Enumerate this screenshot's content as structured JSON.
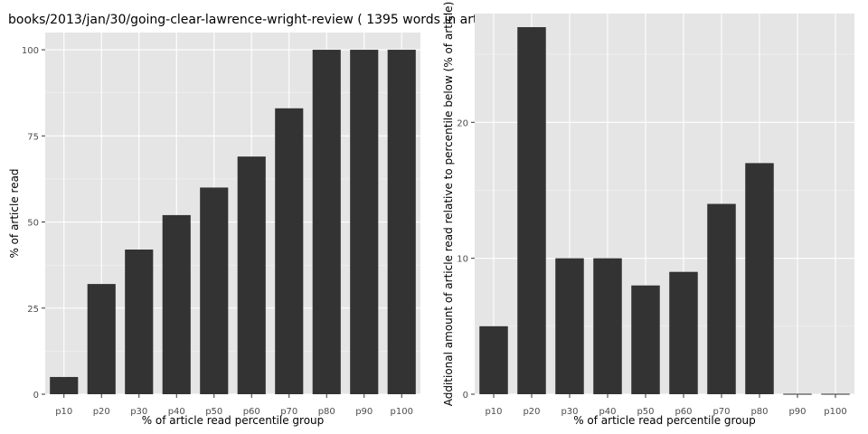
{
  "title": "books/2013/jan/30/going-clear-lawrence-wright-review ( 1395 words in art",
  "colors": {
    "panel_bg": "#e5e5e5",
    "grid_major": "#ffffff",
    "grid_minor": "#f2f2f2",
    "bar": "#333333",
    "tick_text": "#4d4d4d"
  },
  "chart_data": [
    {
      "type": "bar",
      "categories": [
        "p10",
        "p20",
        "p30",
        "p40",
        "p50",
        "p60",
        "p70",
        "p80",
        "p90",
        "p100"
      ],
      "values": [
        5,
        32,
        42,
        52,
        60,
        69,
        83,
        100,
        100,
        100
      ],
      "xlabel": "% of article read percentile group",
      "ylabel": "% of article read",
      "ylim": [
        0,
        105
      ],
      "yticks": [
        0,
        25,
        50,
        75,
        100
      ],
      "grid": true
    },
    {
      "type": "bar",
      "categories": [
        "p10",
        "p20",
        "p30",
        "p40",
        "p50",
        "p60",
        "p70",
        "p80",
        "p90",
        "p100"
      ],
      "values": [
        5,
        27,
        10,
        10,
        8,
        9,
        14,
        17,
        0,
        0
      ],
      "xlabel": "% of article read percentile group",
      "ylabel": "Additional amount of article read relative to percentile below (% of article)",
      "ylim": [
        0,
        28
      ],
      "yticks": [
        0,
        10,
        20
      ],
      "grid": true
    }
  ]
}
